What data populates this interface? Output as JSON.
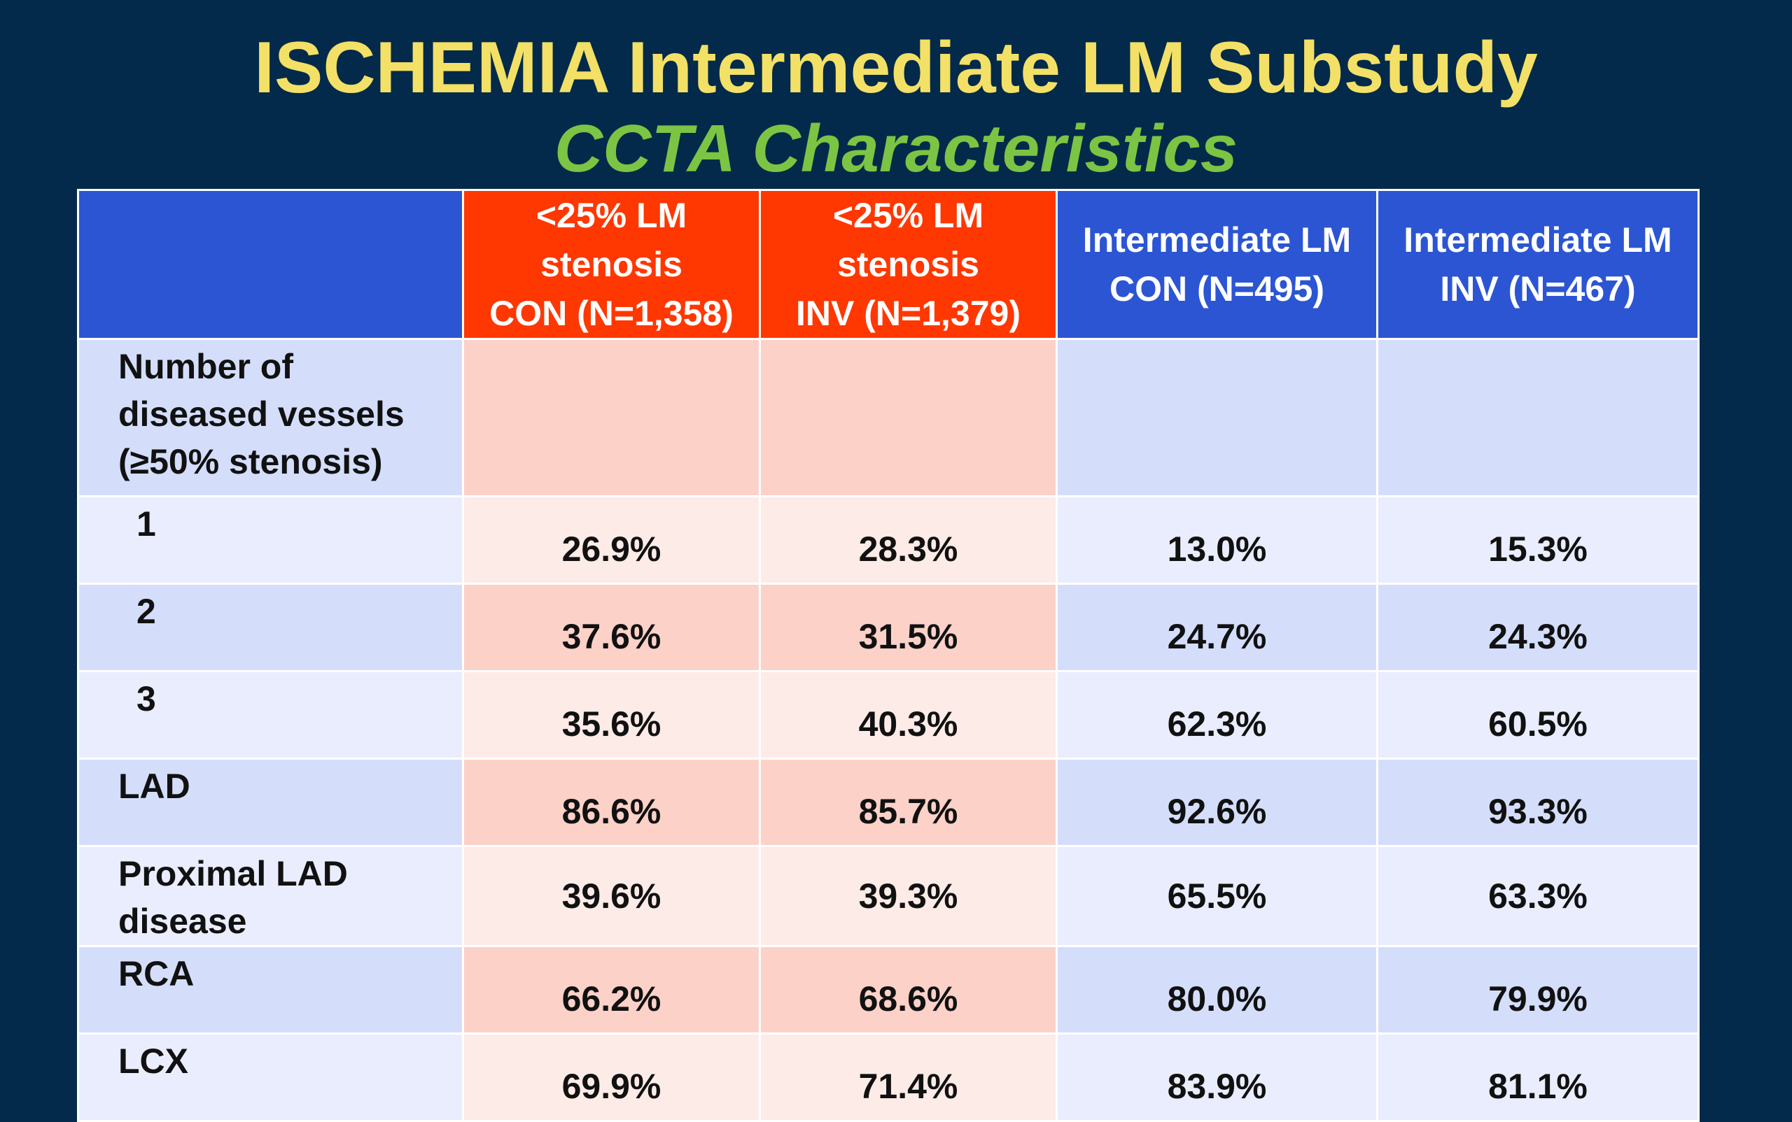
{
  "title": "ISCHEMIA Intermediate LM Substudy",
  "subtitle": "CCTA Characteristics",
  "table": {
    "headers": [
      "",
      "<25% LM\nstenosis\nCON (N=1,358)",
      "<25% LM\nstenosis\nINV (N=1,379)",
      "Intermediate LM\nCON (N=495)",
      "Intermediate LM\nINV (N=467)"
    ],
    "rows": [
      {
        "label": "Number of\ndiseased vessels\n(≥50% stenosis)",
        "values": [
          "",
          "",
          "",
          ""
        ]
      },
      {
        "label": "1",
        "values": [
          "26.9%",
          "28.3%",
          "13.0%",
          "15.3%"
        ]
      },
      {
        "label": "2",
        "values": [
          "37.6%",
          "31.5%",
          "24.7%",
          "24.3%"
        ]
      },
      {
        "label": "3",
        "values": [
          "35.6%",
          "40.3%",
          "62.3%",
          "60.5%"
        ]
      },
      {
        "label": "LAD",
        "values": [
          "86.6%",
          "85.7%",
          "92.6%",
          "93.3%"
        ]
      },
      {
        "label": "Proximal LAD\ndisease",
        "values": [
          "39.6%",
          "39.3%",
          "65.5%",
          "63.3%"
        ]
      },
      {
        "label": "RCA",
        "values": [
          "66.2%",
          "68.6%",
          "80.0%",
          "79.9%"
        ]
      },
      {
        "label": "LCX",
        "values": [
          "69.9%",
          "71.4%",
          "83.9%",
          "81.1%"
        ]
      }
    ]
  },
  "colors": {
    "background": "#032a4a",
    "title": "#f3e066",
    "subtitle": "#7cc443",
    "header_red": "#ff3700",
    "header_blue": "#2b55d3"
  }
}
